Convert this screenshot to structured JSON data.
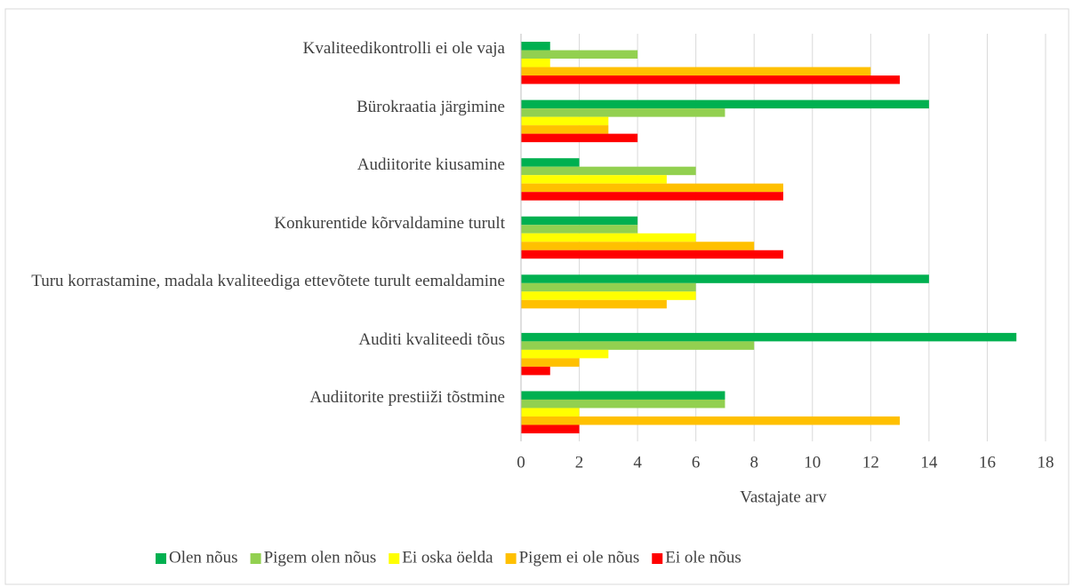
{
  "chart_data": {
    "type": "hbar",
    "categories": [
      "Kvaliteedikontrolli ei ole vaja",
      "Bürokraatia järgimine",
      "Audiitorite kiusamine",
      "Konkurentide kõrvaldamine turult",
      "Turu korrastamine, madala kvaliteediga ettevõtete turult eemaldamine",
      "Auditi kvaliteedi tõus",
      "Audiitorite prestiiži tõstmine"
    ],
    "series": [
      {
        "name": "Olen nõus",
        "color": "#00b050",
        "values": [
          1,
          14,
          2,
          4,
          14,
          17,
          7
        ]
      },
      {
        "name": "Pigem olen nõus",
        "color": "#92d050",
        "values": [
          4,
          7,
          6,
          4,
          6,
          8,
          7
        ]
      },
      {
        "name": "Ei oska öelda",
        "color": "#ffff00",
        "values": [
          1,
          3,
          5,
          6,
          6,
          3,
          2
        ]
      },
      {
        "name": "Pigem ei ole nõus",
        "color": "#ffc000",
        "values": [
          12,
          3,
          9,
          8,
          5,
          2,
          13
        ]
      },
      {
        "name": "Ei ole nõus",
        "color": "#ff0000",
        "values": [
          13,
          4,
          9,
          9,
          0,
          1,
          2
        ]
      }
    ],
    "xlabel": "Vastajate arv",
    "xlim": [
      0,
      18
    ],
    "xticks": [
      0,
      2,
      4,
      6,
      8,
      10,
      12,
      14,
      16,
      18
    ],
    "grid": true,
    "legend": "bottom"
  }
}
